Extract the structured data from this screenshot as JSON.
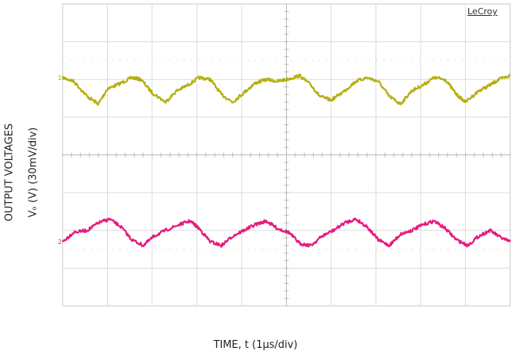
{
  "chart_data": {
    "type": "line",
    "title": "",
    "brand": "LeCroy",
    "ylabel_line1": "OUTPUT VOLTAGES",
    "ylabel_line2": "Vₒ (V) (30mV/div)",
    "xlabel": "TIME, t (1μs/div)",
    "grid": true,
    "divisions": {
      "x": 10,
      "y": 8
    },
    "series": [
      {
        "name": "1",
        "color": "#b5ae10",
        "x": [
          0,
          0.25,
          0.55,
          0.8,
          1.0,
          1.3,
          1.55,
          1.75,
          2.0,
          2.3,
          2.55,
          2.8,
          3.05,
          3.3,
          3.55,
          3.8,
          4.05,
          4.3,
          4.55,
          4.8,
          5.0,
          5.3,
          5.55,
          5.75,
          6.0,
          6.3,
          6.55,
          6.8,
          7.05,
          7.3,
          7.55,
          7.8,
          8.05,
          8.3,
          8.55,
          8.8,
          9.0,
          9.3,
          9.55,
          9.75,
          10.0
        ],
        "y": [
          6.05,
          5.95,
          5.55,
          5.35,
          5.75,
          5.9,
          6.05,
          6.0,
          5.65,
          5.4,
          5.7,
          5.85,
          6.05,
          6.0,
          5.6,
          5.4,
          5.65,
          5.9,
          6.0,
          5.95,
          6.0,
          6.1,
          5.85,
          5.55,
          5.45,
          5.7,
          5.95,
          6.05,
          5.95,
          5.55,
          5.35,
          5.7,
          5.85,
          6.05,
          6.0,
          5.6,
          5.4,
          5.7,
          5.85,
          6.0,
          6.1
        ]
      },
      {
        "name": "2",
        "color": "#e8197d",
        "x": [
          0,
          0.25,
          0.55,
          0.8,
          1.05,
          1.3,
          1.55,
          1.8,
          2.05,
          2.3,
          2.6,
          2.85,
          3.05,
          3.3,
          3.55,
          3.8,
          4.05,
          4.3,
          4.55,
          4.8,
          5.05,
          5.3,
          5.55,
          5.8,
          6.05,
          6.3,
          6.55,
          6.8,
          7.05,
          7.3,
          7.55,
          7.8,
          8.05,
          8.3,
          8.55,
          8.8,
          9.05,
          9.3,
          9.55,
          9.8,
          10.0
        ],
        "y": [
          1.7,
          1.95,
          2.0,
          2.2,
          2.3,
          2.1,
          1.75,
          1.6,
          1.85,
          2.0,
          2.15,
          2.25,
          2.05,
          1.7,
          1.6,
          1.85,
          2.0,
          2.15,
          2.25,
          2.05,
          1.95,
          1.65,
          1.6,
          1.85,
          2.0,
          2.2,
          2.3,
          2.1,
          1.75,
          1.6,
          1.9,
          2.0,
          2.15,
          2.25,
          2.05,
          1.75,
          1.6,
          1.85,
          2.0,
          1.8,
          1.7
        ]
      }
    ],
    "channel_markers": [
      "1",
      "2"
    ]
  }
}
